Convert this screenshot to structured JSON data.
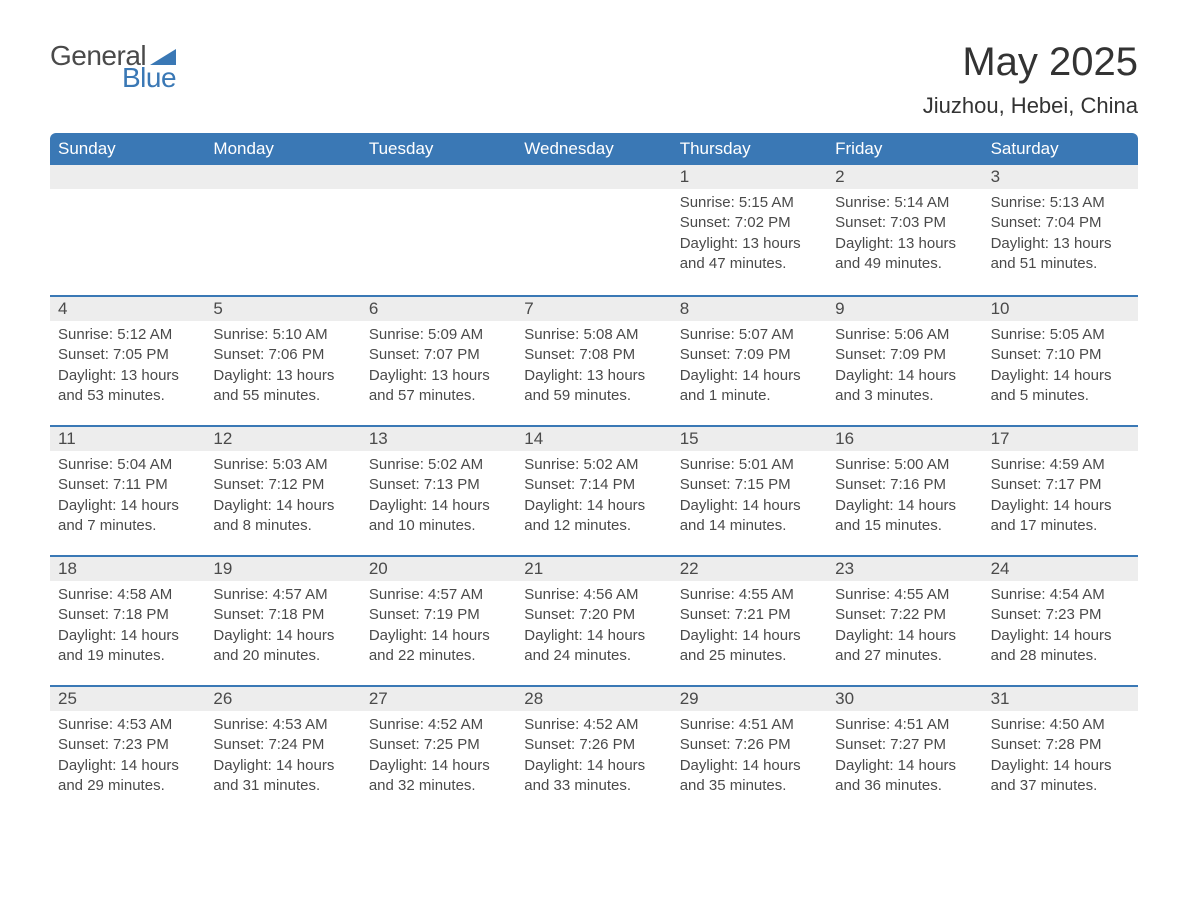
{
  "logo": {
    "textGeneral": "General",
    "textBlue": "Blue",
    "triangleColor": "#3a78b5"
  },
  "title": "May 2025",
  "location": "Jiuzhou, Hebei, China",
  "colors": {
    "headerBg": "#3a78b5",
    "headerText": "#ffffff",
    "dayNumBg": "#ededed",
    "borderTop": "#3a78b5",
    "bodyText": "#4a4a4a",
    "background": "#ffffff"
  },
  "typography": {
    "titleFontSize": 40,
    "locationFontSize": 22,
    "headerFontSize": 17,
    "dayNumFontSize": 17,
    "contentFontSize": 15
  },
  "layout": {
    "columns": 7,
    "rows": 5,
    "widthPx": 1188,
    "heightPx": 918
  },
  "dayHeaders": [
    "Sunday",
    "Monday",
    "Tuesday",
    "Wednesday",
    "Thursday",
    "Friday",
    "Saturday"
  ],
  "weeks": [
    [
      {
        "empty": true
      },
      {
        "empty": true
      },
      {
        "empty": true
      },
      {
        "empty": true
      },
      {
        "num": "1",
        "sunrise": "Sunrise: 5:15 AM",
        "sunset": "Sunset: 7:02 PM",
        "daylight1": "Daylight: 13 hours",
        "daylight2": "and 47 minutes."
      },
      {
        "num": "2",
        "sunrise": "Sunrise: 5:14 AM",
        "sunset": "Sunset: 7:03 PM",
        "daylight1": "Daylight: 13 hours",
        "daylight2": "and 49 minutes."
      },
      {
        "num": "3",
        "sunrise": "Sunrise: 5:13 AM",
        "sunset": "Sunset: 7:04 PM",
        "daylight1": "Daylight: 13 hours",
        "daylight2": "and 51 minutes."
      }
    ],
    [
      {
        "num": "4",
        "sunrise": "Sunrise: 5:12 AM",
        "sunset": "Sunset: 7:05 PM",
        "daylight1": "Daylight: 13 hours",
        "daylight2": "and 53 minutes."
      },
      {
        "num": "5",
        "sunrise": "Sunrise: 5:10 AM",
        "sunset": "Sunset: 7:06 PM",
        "daylight1": "Daylight: 13 hours",
        "daylight2": "and 55 minutes."
      },
      {
        "num": "6",
        "sunrise": "Sunrise: 5:09 AM",
        "sunset": "Sunset: 7:07 PM",
        "daylight1": "Daylight: 13 hours",
        "daylight2": "and 57 minutes."
      },
      {
        "num": "7",
        "sunrise": "Sunrise: 5:08 AM",
        "sunset": "Sunset: 7:08 PM",
        "daylight1": "Daylight: 13 hours",
        "daylight2": "and 59 minutes."
      },
      {
        "num": "8",
        "sunrise": "Sunrise: 5:07 AM",
        "sunset": "Sunset: 7:09 PM",
        "daylight1": "Daylight: 14 hours",
        "daylight2": "and 1 minute."
      },
      {
        "num": "9",
        "sunrise": "Sunrise: 5:06 AM",
        "sunset": "Sunset: 7:09 PM",
        "daylight1": "Daylight: 14 hours",
        "daylight2": "and 3 minutes."
      },
      {
        "num": "10",
        "sunrise": "Sunrise: 5:05 AM",
        "sunset": "Sunset: 7:10 PM",
        "daylight1": "Daylight: 14 hours",
        "daylight2": "and 5 minutes."
      }
    ],
    [
      {
        "num": "11",
        "sunrise": "Sunrise: 5:04 AM",
        "sunset": "Sunset: 7:11 PM",
        "daylight1": "Daylight: 14 hours",
        "daylight2": "and 7 minutes."
      },
      {
        "num": "12",
        "sunrise": "Sunrise: 5:03 AM",
        "sunset": "Sunset: 7:12 PM",
        "daylight1": "Daylight: 14 hours",
        "daylight2": "and 8 minutes."
      },
      {
        "num": "13",
        "sunrise": "Sunrise: 5:02 AM",
        "sunset": "Sunset: 7:13 PM",
        "daylight1": "Daylight: 14 hours",
        "daylight2": "and 10 minutes."
      },
      {
        "num": "14",
        "sunrise": "Sunrise: 5:02 AM",
        "sunset": "Sunset: 7:14 PM",
        "daylight1": "Daylight: 14 hours",
        "daylight2": "and 12 minutes."
      },
      {
        "num": "15",
        "sunrise": "Sunrise: 5:01 AM",
        "sunset": "Sunset: 7:15 PM",
        "daylight1": "Daylight: 14 hours",
        "daylight2": "and 14 minutes."
      },
      {
        "num": "16",
        "sunrise": "Sunrise: 5:00 AM",
        "sunset": "Sunset: 7:16 PM",
        "daylight1": "Daylight: 14 hours",
        "daylight2": "and 15 minutes."
      },
      {
        "num": "17",
        "sunrise": "Sunrise: 4:59 AM",
        "sunset": "Sunset: 7:17 PM",
        "daylight1": "Daylight: 14 hours",
        "daylight2": "and 17 minutes."
      }
    ],
    [
      {
        "num": "18",
        "sunrise": "Sunrise: 4:58 AM",
        "sunset": "Sunset: 7:18 PM",
        "daylight1": "Daylight: 14 hours",
        "daylight2": "and 19 minutes."
      },
      {
        "num": "19",
        "sunrise": "Sunrise: 4:57 AM",
        "sunset": "Sunset: 7:18 PM",
        "daylight1": "Daylight: 14 hours",
        "daylight2": "and 20 minutes."
      },
      {
        "num": "20",
        "sunrise": "Sunrise: 4:57 AM",
        "sunset": "Sunset: 7:19 PM",
        "daylight1": "Daylight: 14 hours",
        "daylight2": "and 22 minutes."
      },
      {
        "num": "21",
        "sunrise": "Sunrise: 4:56 AM",
        "sunset": "Sunset: 7:20 PM",
        "daylight1": "Daylight: 14 hours",
        "daylight2": "and 24 minutes."
      },
      {
        "num": "22",
        "sunrise": "Sunrise: 4:55 AM",
        "sunset": "Sunset: 7:21 PM",
        "daylight1": "Daylight: 14 hours",
        "daylight2": "and 25 minutes."
      },
      {
        "num": "23",
        "sunrise": "Sunrise: 4:55 AM",
        "sunset": "Sunset: 7:22 PM",
        "daylight1": "Daylight: 14 hours",
        "daylight2": "and 27 minutes."
      },
      {
        "num": "24",
        "sunrise": "Sunrise: 4:54 AM",
        "sunset": "Sunset: 7:23 PM",
        "daylight1": "Daylight: 14 hours",
        "daylight2": "and 28 minutes."
      }
    ],
    [
      {
        "num": "25",
        "sunrise": "Sunrise: 4:53 AM",
        "sunset": "Sunset: 7:23 PM",
        "daylight1": "Daylight: 14 hours",
        "daylight2": "and 29 minutes."
      },
      {
        "num": "26",
        "sunrise": "Sunrise: 4:53 AM",
        "sunset": "Sunset: 7:24 PM",
        "daylight1": "Daylight: 14 hours",
        "daylight2": "and 31 minutes."
      },
      {
        "num": "27",
        "sunrise": "Sunrise: 4:52 AM",
        "sunset": "Sunset: 7:25 PM",
        "daylight1": "Daylight: 14 hours",
        "daylight2": "and 32 minutes."
      },
      {
        "num": "28",
        "sunrise": "Sunrise: 4:52 AM",
        "sunset": "Sunset: 7:26 PM",
        "daylight1": "Daylight: 14 hours",
        "daylight2": "and 33 minutes."
      },
      {
        "num": "29",
        "sunrise": "Sunrise: 4:51 AM",
        "sunset": "Sunset: 7:26 PM",
        "daylight1": "Daylight: 14 hours",
        "daylight2": "and 35 minutes."
      },
      {
        "num": "30",
        "sunrise": "Sunrise: 4:51 AM",
        "sunset": "Sunset: 7:27 PM",
        "daylight1": "Daylight: 14 hours",
        "daylight2": "and 36 minutes."
      },
      {
        "num": "31",
        "sunrise": "Sunrise: 4:50 AM",
        "sunset": "Sunset: 7:28 PM",
        "daylight1": "Daylight: 14 hours",
        "daylight2": "and 37 minutes."
      }
    ]
  ]
}
